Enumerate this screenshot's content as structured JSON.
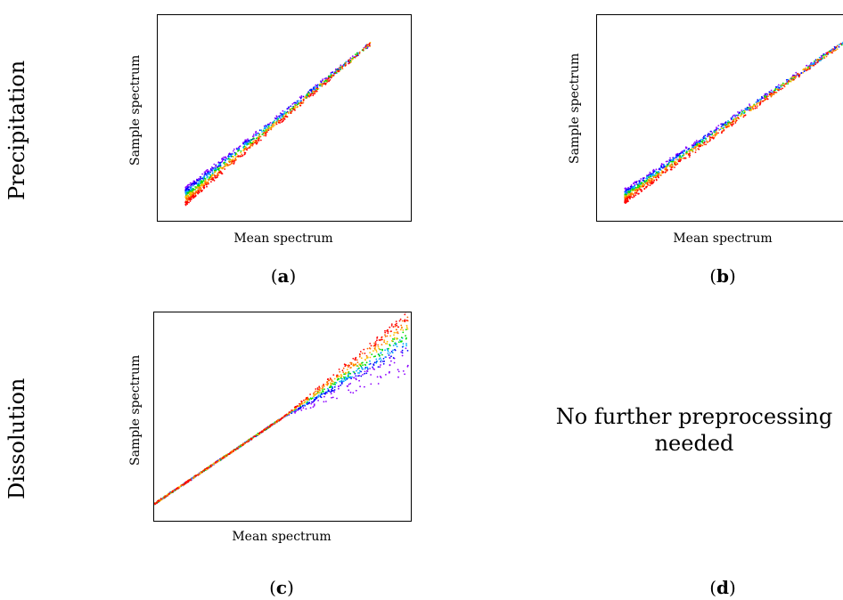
{
  "row_labels": [
    "Precipitation",
    "Dissolution"
  ],
  "no_preprocessing_text": [
    "No further preprocessing",
    "needed"
  ],
  "chart_data": [
    {
      "type": "scatter",
      "panel": "a",
      "xlabel": "Mean spectrum",
      "ylabel": "Sample spectrum",
      "series_colors": [
        "#8b00ff",
        "#0000ff",
        "#00aaff",
        "#00dd00",
        "#ffbb00",
        "#ff6600",
        "#ff0000"
      ],
      "grid": false
    },
    {
      "type": "scatter",
      "panel": "b",
      "xlabel": "Mean spectrum",
      "ylabel": "Sample spectrum",
      "series_colors": [
        "#8b00ff",
        "#0000ff",
        "#00aaff",
        "#00dd00",
        "#ffbb00",
        "#ff6600",
        "#ff0000"
      ],
      "grid": false
    },
    {
      "type": "scatter",
      "panel": "c",
      "xlabel": "Mean spectrum",
      "ylabel": "Sample spectrum",
      "series_colors": [
        "#8b00ff",
        "#0000ff",
        "#00aaff",
        "#00dd00",
        "#ffbb00",
        "#ff6600",
        "#ff0000"
      ],
      "grid": false
    }
  ],
  "panels": {
    "a": {
      "letter": "a"
    },
    "b": {
      "letter": "b"
    },
    "c": {
      "letter": "c"
    },
    "d": {
      "letter": "d"
    }
  }
}
